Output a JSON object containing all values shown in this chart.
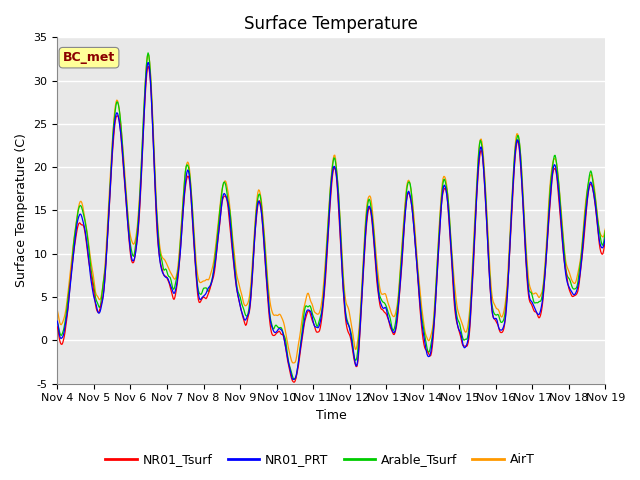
{
  "title": "Surface Temperature",
  "xlabel": "Time",
  "ylabel": "Surface Temperature (C)",
  "ylim": [
    -5,
    35
  ],
  "yticks": [
    -5,
    0,
    5,
    10,
    15,
    20,
    25,
    30,
    35
  ],
  "xtick_labels": [
    "Nov 4",
    "Nov 5",
    "Nov 6",
    "Nov 7",
    "Nov 8",
    "Nov 9",
    "Nov 10",
    "Nov 11",
    "Nov 12",
    "Nov 13",
    "Nov 14",
    "Nov 15",
    "Nov 16",
    "Nov 17",
    "Nov 18",
    "Nov 19"
  ],
  "annotation": "BC_met",
  "annotation_color": "#8B0000",
  "annotation_bg": "#FFFF99",
  "series_colors": [
    "#FF0000",
    "#0000FF",
    "#00CC00",
    "#FF9900"
  ],
  "series_names": [
    "NR01_Tsurf",
    "NR01_PRT",
    "Arable_Tsurf",
    "AirT"
  ],
  "bg_color": "#E8E8E8",
  "grid_color": "#FFFFFF",
  "title_fontsize": 12,
  "axis_fontsize": 9,
  "tick_fontsize": 8
}
